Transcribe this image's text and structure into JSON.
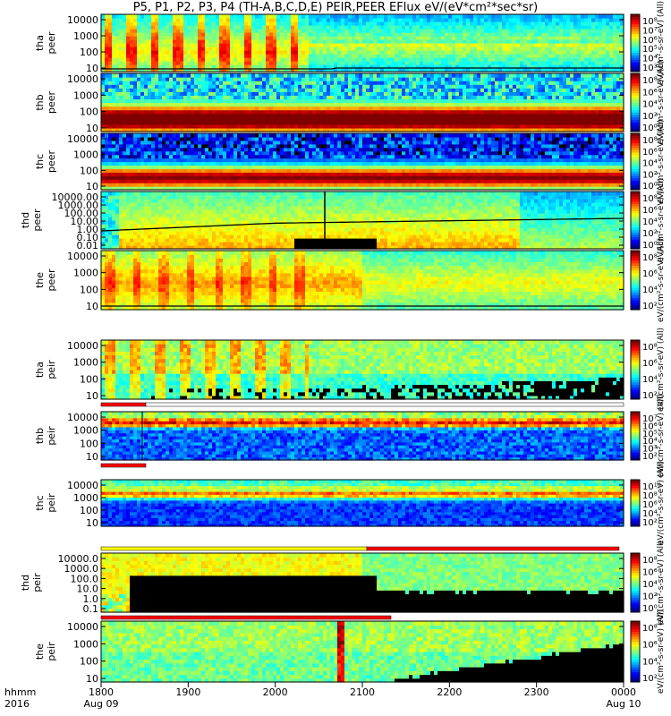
{
  "title": "P5, P1, P2, P3, P4 (TH-A,B,C,D,E) PEIR,PEER EFlux eV/(eV*cm²*sec*sr)",
  "chart_data": {
    "type": "heatmap",
    "title": "P5, P1, P2, P3, P4 (TH-A,B,C,D,E) PEIR,PEER EFlux eV/(eV*cm²*sec*sr)",
    "x_ticks": [
      "1800",
      "1900",
      "2000",
      "2100",
      "2200",
      "2300",
      "0000"
    ],
    "x_dates": [
      "Aug 09",
      "Aug 10"
    ],
    "x_labels_left": [
      "hhmm",
      "2016"
    ],
    "colorbar_unit": "[eV/(cm²-s-sr-eV)]",
    "colorbar_rotated_text": "eV/(cm²-s-sr-eV) (All)",
    "panels": [
      {
        "probe": "tha",
        "species": "peer",
        "ylabel": "tha peer",
        "yticks": [
          "10000",
          "1000",
          "100",
          "10"
        ],
        "cbar": [
          "10⁸",
          "10⁷",
          "10⁶",
          "10⁵",
          "10⁴",
          "10³"
        ],
        "style": "tha_e"
      },
      {
        "probe": "thb",
        "species": "peer",
        "ylabel": "thb peer",
        "yticks": [
          "10000",
          "1000",
          "100",
          "10"
        ],
        "cbar": [
          "10⁸",
          "10⁶",
          "10⁴",
          "10²",
          "10⁰"
        ],
        "style": "thb_e"
      },
      {
        "probe": "thc",
        "species": "peer",
        "ylabel": "thc peer",
        "yticks": [
          "10000",
          "1000",
          "100",
          "10"
        ],
        "cbar": [
          "10⁸",
          "10⁶",
          "10⁴",
          "10²",
          "10⁰"
        ],
        "style": "thc_e"
      },
      {
        "probe": "thd",
        "species": "peer",
        "ylabel": "thd peer",
        "yticks": [
          "10000.00",
          "1000.00",
          "100.00",
          "10.00",
          "1.00",
          "0.10",
          "0.01"
        ],
        "cbar": [
          "10⁸",
          "10⁶",
          "10⁴",
          "10²",
          "10⁰"
        ],
        "style": "thd_e"
      },
      {
        "probe": "the",
        "species": "peer",
        "ylabel": "the peer",
        "yticks": [
          "10000",
          "1000",
          "100",
          "10"
        ],
        "cbar": [
          "10⁸",
          "10⁶",
          "10⁴",
          "10²"
        ],
        "style": "the_e"
      },
      {
        "probe": "tha",
        "species": "peir",
        "ylabel": "tha peir",
        "yticks": [
          "10000",
          "1000",
          "100",
          "10"
        ],
        "cbar": [
          "10⁸",
          "10⁶",
          "10⁴",
          "10²"
        ],
        "style": "tha_i"
      },
      {
        "probe": "thb",
        "species": "peir",
        "ylabel": "thb peir",
        "yticks": [
          "10000",
          "1000",
          "100",
          "10"
        ],
        "cbar": [
          "10⁷",
          "10⁶",
          "10⁵",
          "10⁴",
          "10³",
          "10²"
        ],
        "style": "thb_i"
      },
      {
        "probe": "thc",
        "species": "peir",
        "ylabel": "thc peir",
        "yticks": [
          "10000",
          "1000",
          "100",
          "10"
        ],
        "cbar": [
          "10¹⁰",
          "10⁸",
          "10⁶",
          "10⁴",
          "10²"
        ],
        "style": "thc_i"
      },
      {
        "probe": "thd",
        "species": "peir",
        "ylabel": "thd peir",
        "yticks": [
          "10000.0",
          "1000.0",
          "100.0",
          "10.0",
          "1.0",
          "0.1"
        ],
        "cbar": [
          "10⁸",
          "10⁶",
          "10⁴",
          "10²",
          "10⁰"
        ],
        "style": "thd_i"
      },
      {
        "probe": "the",
        "species": "peir",
        "ylabel": "the peir",
        "yticks": [
          "10000",
          "1000",
          "100",
          "10"
        ],
        "cbar": [
          "10⁸",
          "10⁶",
          "10⁴",
          "10²"
        ],
        "style": "the_i"
      }
    ],
    "colorscale": [
      "#00007f",
      "#0000ff",
      "#007fff",
      "#00ffff",
      "#7fff7f",
      "#ffff00",
      "#ff7f00",
      "#ff0000",
      "#7f0000"
    ]
  }
}
